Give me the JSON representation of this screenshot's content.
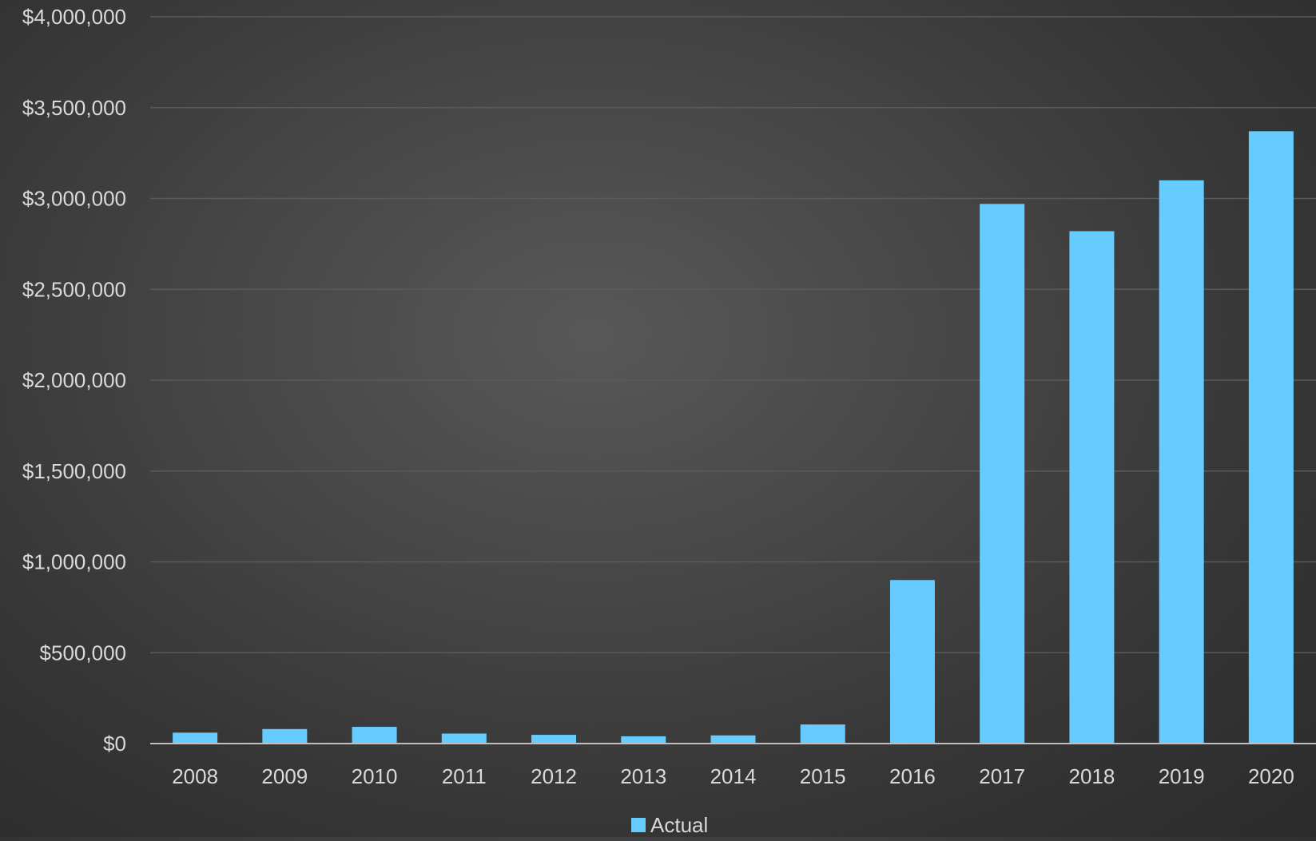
{
  "chart_data": {
    "type": "bar",
    "categories": [
      "2008",
      "2009",
      "2010",
      "2011",
      "2012",
      "2013",
      "2014",
      "2015",
      "2016",
      "2017",
      "2018",
      "2019",
      "2020"
    ],
    "series": [
      {
        "name": "Actual",
        "values": [
          60000,
          80000,
          92000,
          55000,
          48000,
          40000,
          45000,
          105000,
          900000,
          2970000,
          2820000,
          3100000,
          3370000
        ],
        "color": "#66ccff"
      }
    ],
    "ylim": [
      0,
      4000000
    ],
    "yticks": [
      "$0",
      "$500,000",
      "$1,000,000",
      "$1,500,000",
      "$2,000,000",
      "$2,500,000",
      "$3,000,000",
      "$3,500,000",
      "$4,000,000"
    ],
    "ytick_values": [
      0,
      500000,
      1000000,
      1500000,
      2000000,
      2500000,
      3000000,
      3500000,
      4000000
    ],
    "grid": true,
    "legend_position": "bottom",
    "colors": {
      "gridline": "#5a5a5a",
      "axis_line": "#bfbfbf",
      "tick_text": "#d9d9d9"
    }
  },
  "legend": {
    "label": "Actual"
  }
}
